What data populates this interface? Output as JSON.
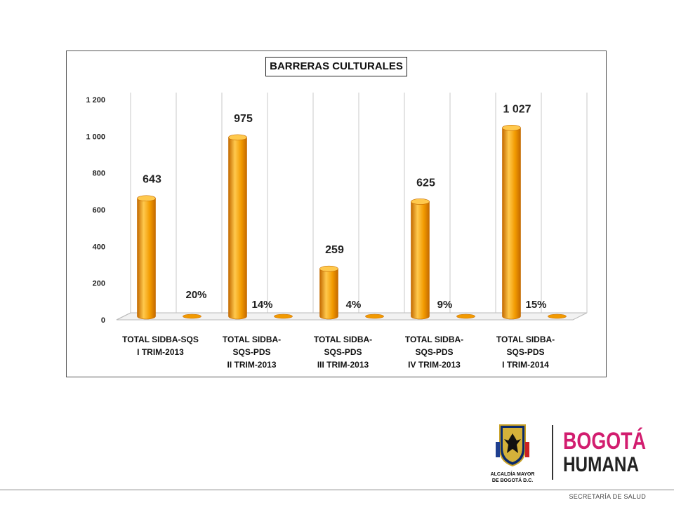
{
  "chart_data": {
    "type": "bar",
    "title": "BARRERAS CULTURALES",
    "categories": [
      [
        "TOTAL SIDBA-SQS",
        "I TRIM-2013"
      ],
      [
        "TOTAL SIDBA-",
        "SQS-PDS",
        "II TRIM-2013"
      ],
      [
        "TOTAL SIDBA-",
        "SQS-PDS",
        "III TRIM-2013"
      ],
      [
        "TOTAL SIDBA-",
        "SQS-PDS",
        "IV TRIM-2013"
      ],
      [
        "TOTAL SIDBA-",
        "SQS-PDS",
        "I TRIM-2014"
      ]
    ],
    "values": [
      643,
      975,
      259,
      625,
      1027
    ],
    "value_labels": [
      "643",
      "975",
      "259",
      "625",
      "1 027"
    ],
    "percent_labels": [
      "20%",
      "14%",
      "4%",
      "9%",
      "15%"
    ],
    "yticks": [
      "0",
      "200",
      "400",
      "600",
      "800",
      "1 000",
      "1 200"
    ],
    "ylim": [
      0,
      1200
    ],
    "grid": "vertical",
    "bar_color": "#F29A00",
    "bar_color_light": "#FFC94D",
    "bar_color_dark": "#C46A00"
  },
  "logos": {
    "alcaldia_line1": "ALCALDÍA MAYOR",
    "alcaldia_line2": "DE BOGOTÁ D.C.",
    "bogota_word": "BOGOTÁ",
    "humana_word": "HUMANA"
  },
  "footer": {
    "text": "SECRETARÍA DE SALUD"
  }
}
